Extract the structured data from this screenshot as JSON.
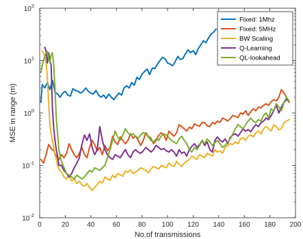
{
  "chart_data": {
    "type": "line",
    "xlabel": "No.of transmissions",
    "ylabel": "MSE in range (m)",
    "xlim": [
      0,
      200
    ],
    "ylim": [
      0.01,
      100
    ],
    "yscale": "log",
    "grid": false,
    "legend_position": "top-right",
    "x_ticks": [
      "0",
      "20",
      "40",
      "60",
      "80",
      "100",
      "120",
      "140",
      "160",
      "180",
      "200"
    ],
    "y_ticks": [
      {
        "base": "10",
        "exp": "-2"
      },
      {
        "base": "10",
        "exp": "-1"
      },
      {
        "base": "10",
        "exp": "0"
      },
      {
        "base": "10",
        "exp": "1"
      },
      {
        "base": "10",
        "exp": "2"
      }
    ],
    "series": [
      {
        "name": "Fixed: 1Mhz",
        "color": "#0072BD",
        "x": [
          1,
          2,
          4,
          6,
          8,
          10,
          12,
          14,
          16,
          18,
          20,
          22,
          24,
          26,
          28,
          30,
          32,
          34,
          36,
          38,
          40,
          42,
          44,
          46,
          48,
          50,
          52,
          54,
          56,
          58,
          60,
          62,
          64,
          66,
          68,
          70,
          72,
          74,
          76,
          78,
          80,
          82,
          84,
          86,
          88,
          90,
          92,
          94,
          96,
          98,
          100,
          102,
          104,
          106,
          108,
          110,
          112,
          114,
          116,
          118,
          120,
          122,
          124,
          126,
          128,
          130,
          132,
          134,
          136,
          138
        ],
        "y": [
          1.6,
          3.5,
          3.0,
          3.8,
          2.8,
          4.2,
          2.5,
          2.3,
          2.0,
          2.4,
          2.6,
          2.2,
          2.1,
          2.9,
          2.7,
          2.6,
          2.4,
          2.6,
          3.0,
          2.6,
          2.4,
          2.3,
          2.7,
          2.2,
          2.0,
          2.2,
          1.9,
          2.3,
          2.0,
          1.8,
          2.1,
          2.4,
          2.2,
          3.0,
          3.3,
          3.0,
          3.8,
          3.4,
          4.8,
          4.4,
          5.5,
          6.2,
          6.9,
          5.4,
          7.2,
          7.0,
          8.5,
          10.0,
          11.5,
          10.8,
          9.0,
          8.6,
          8.0,
          9.6,
          12.0,
          10.5,
          11.0,
          13.5,
          16.0,
          14.2,
          15.5,
          13.0,
          17.0,
          20.0,
          24.0,
          22.0,
          27.0,
          32.0,
          35.0,
          40.0
        ]
      },
      {
        "name": "Fixed: 5MHz",
        "color": "#D95319",
        "x": [
          1,
          3,
          5,
          7,
          9,
          11,
          13,
          15,
          17,
          19,
          21,
          23,
          25,
          27,
          29,
          31,
          33,
          35,
          37,
          39,
          41,
          43,
          45,
          47,
          49,
          51,
          53,
          55,
          57,
          59,
          61,
          63,
          65,
          67,
          69,
          71,
          73,
          75,
          77,
          79,
          81,
          83,
          85,
          87,
          89,
          91,
          93,
          95,
          97,
          99,
          101,
          103,
          105,
          107,
          109,
          111,
          113,
          115,
          117,
          119,
          121,
          123,
          125,
          127,
          129,
          131,
          133,
          135,
          137,
          139,
          141,
          143,
          145,
          147,
          149,
          151,
          153,
          155,
          157,
          159,
          161,
          163,
          165,
          167,
          169,
          171,
          173,
          175,
          177,
          179,
          181,
          183,
          185,
          187,
          189,
          191,
          193,
          195
        ],
        "y": [
          0.13,
          0.11,
          0.16,
          0.25,
          0.21,
          0.19,
          0.15,
          0.13,
          0.16,
          0.14,
          0.17,
          0.26,
          0.2,
          0.16,
          0.14,
          0.17,
          0.22,
          0.16,
          0.14,
          0.22,
          0.3,
          0.25,
          0.19,
          0.22,
          0.16,
          0.24,
          0.19,
          0.22,
          0.36,
          0.28,
          0.25,
          0.35,
          0.3,
          0.26,
          0.3,
          0.4,
          0.33,
          0.36,
          0.3,
          0.24,
          0.3,
          0.42,
          0.36,
          0.33,
          0.26,
          0.3,
          0.37,
          0.42,
          0.38,
          0.3,
          0.45,
          0.4,
          0.36,
          0.42,
          0.6,
          0.55,
          0.5,
          0.45,
          0.54,
          0.5,
          0.62,
          0.58,
          0.56,
          0.66,
          0.65,
          0.57,
          0.55,
          0.66,
          0.62,
          0.7,
          0.66,
          0.8,
          0.76,
          0.7,
          0.78,
          0.9,
          0.86,
          0.82,
          1.0,
          0.95,
          1.1,
          0.9,
          1.05,
          1.2,
          1.1,
          1.3,
          1.25,
          1.4,
          1.5,
          1.4,
          1.65,
          1.8,
          1.7,
          2.0,
          2.8,
          2.4,
          2.0,
          1.6
        ]
      },
      {
        "name": "BW Scaling",
        "color": "#EDB120",
        "x": [
          2,
          3,
          4,
          5,
          6,
          7,
          8,
          9,
          10,
          11,
          12,
          13,
          14,
          15,
          17,
          19,
          21,
          23,
          25,
          27,
          29,
          31,
          33,
          35,
          37,
          39,
          41,
          43,
          45,
          47,
          49,
          51,
          53,
          55,
          57,
          59,
          61,
          63,
          65,
          67,
          69,
          71,
          73,
          75,
          77,
          79,
          81,
          83,
          85,
          87,
          89,
          91,
          93,
          95,
          97,
          99,
          101,
          103,
          105,
          107,
          109,
          111,
          113,
          115,
          117,
          119,
          121,
          123,
          125,
          127,
          129,
          131,
          133,
          135,
          137,
          139,
          141,
          143,
          145,
          147,
          149,
          151,
          153,
          155,
          157,
          159,
          161,
          163,
          165,
          167,
          169,
          171,
          173,
          175,
          177,
          179,
          181,
          183,
          185,
          187,
          189,
          191,
          193,
          195
        ],
        "y": [
          15.0,
          14.0,
          12.0,
          9.0,
          5.0,
          1.6,
          0.6,
          0.4,
          0.3,
          0.22,
          0.16,
          0.13,
          0.1,
          0.085,
          0.075,
          0.06,
          0.055,
          0.065,
          0.05,
          0.055,
          0.045,
          0.05,
          0.042,
          0.04,
          0.045,
          0.038,
          0.033,
          0.038,
          0.043,
          0.05,
          0.046,
          0.06,
          0.055,
          0.052,
          0.065,
          0.058,
          0.07,
          0.066,
          0.062,
          0.078,
          0.074,
          0.082,
          0.07,
          0.075,
          0.08,
          0.09,
          0.085,
          0.08,
          0.072,
          0.085,
          0.095,
          0.09,
          0.085,
          0.1,
          0.095,
          0.09,
          0.11,
          0.1,
          0.095,
          0.12,
          0.105,
          0.095,
          0.11,
          0.12,
          0.13,
          0.15,
          0.14,
          0.13,
          0.16,
          0.15,
          0.14,
          0.17,
          0.16,
          0.15,
          0.2,
          0.18,
          0.19,
          0.17,
          0.22,
          0.24,
          0.26,
          0.25,
          0.28,
          0.26,
          0.32,
          0.34,
          0.3,
          0.36,
          0.38,
          0.35,
          0.42,
          0.45,
          0.4,
          0.5,
          0.55,
          0.5,
          0.45,
          0.6,
          0.55,
          0.48,
          0.5,
          0.65,
          0.7,
          0.75
        ]
      },
      {
        "name": "Q-Learning",
        "color": "#7E2F8E",
        "x": [
          4,
          5,
          6,
          7,
          8,
          9,
          10,
          11,
          12,
          13,
          14,
          15,
          17,
          19,
          21,
          23,
          25,
          27,
          29,
          31,
          33,
          35,
          37,
          39,
          41,
          43,
          45,
          47,
          49,
          51,
          53,
          55,
          57,
          59,
          61,
          63,
          65,
          67,
          69,
          71,
          73,
          75,
          77,
          79,
          81,
          83,
          85,
          87,
          89,
          91,
          93,
          95,
          97,
          99,
          101,
          103,
          105,
          107,
          109,
          111,
          113,
          115,
          117,
          119,
          121,
          123,
          125,
          127,
          129,
          131,
          133,
          135,
          137,
          139,
          141,
          143,
          145,
          147,
          149,
          151,
          153,
          155,
          157,
          159,
          161,
          163,
          165,
          167,
          169,
          171,
          173,
          175,
          177,
          179,
          181,
          183,
          185,
          187,
          189,
          191,
          193,
          195
        ],
        "y": [
          18.0,
          15.0,
          9.0,
          14.0,
          10.0,
          8.0,
          1.2,
          0.5,
          0.3,
          0.2,
          0.15,
          0.1,
          0.1,
          0.08,
          0.07,
          0.06,
          0.07,
          0.09,
          0.11,
          0.14,
          0.25,
          0.38,
          0.3,
          0.4,
          0.22,
          0.16,
          0.2,
          0.55,
          0.3,
          0.2,
          0.16,
          0.14,
          0.13,
          0.16,
          0.15,
          0.14,
          0.17,
          0.2,
          0.16,
          0.14,
          0.18,
          0.2,
          0.18,
          0.17,
          0.19,
          0.22,
          0.2,
          0.18,
          0.2,
          0.24,
          0.22,
          0.2,
          0.21,
          0.19,
          0.18,
          0.2,
          0.18,
          0.15,
          0.2,
          0.17,
          0.18,
          0.15,
          0.2,
          0.23,
          0.26,
          0.22,
          0.25,
          0.3,
          0.24,
          0.28,
          0.2,
          0.18,
          0.3,
          0.35,
          0.3,
          0.28,
          0.32,
          0.26,
          0.34,
          0.38,
          0.4,
          0.36,
          0.42,
          0.5,
          0.45,
          0.48,
          0.44,
          0.52,
          0.6,
          0.55,
          0.65,
          0.7,
          0.8,
          0.75,
          0.9,
          1.1,
          1.4,
          1.0,
          1.3,
          1.6,
          1.8,
          1.7
        ]
      },
      {
        "name": "QL-lookahead",
        "color": "#77AC30",
        "x": [
          1,
          2,
          3,
          4,
          5,
          6,
          7,
          8,
          9,
          10,
          11,
          12,
          13,
          14,
          15,
          17,
          19,
          21,
          23,
          25,
          27,
          29,
          31,
          33,
          35,
          37,
          39,
          41,
          43,
          45,
          47,
          49,
          51,
          53,
          55,
          57,
          59,
          61,
          63,
          65,
          67,
          69,
          71,
          73,
          75,
          77,
          79,
          81,
          83,
          85,
          87,
          89,
          91,
          93,
          95,
          97,
          99,
          101,
          103,
          105,
          107,
          109,
          111,
          113,
          115,
          117,
          119,
          121,
          123,
          125,
          127,
          129,
          131,
          133,
          135,
          137,
          139,
          141,
          143,
          145,
          147,
          149,
          151,
          153,
          155,
          157,
          159,
          161,
          163,
          165,
          167,
          169,
          171,
          173,
          175,
          177,
          179,
          181,
          183,
          185,
          187,
          189,
          191,
          193,
          195
        ],
        "y": [
          6.0,
          8.0,
          10.0,
          12.0,
          14.0,
          15.0,
          11.0,
          9.0,
          13.0,
          14.0,
          8.0,
          3.0,
          0.8,
          0.4,
          0.2,
          0.12,
          0.09,
          0.07,
          0.065,
          0.06,
          0.055,
          0.065,
          0.06,
          0.055,
          0.06,
          0.07,
          0.08,
          0.075,
          0.09,
          0.085,
          0.08,
          0.09,
          0.1,
          0.14,
          0.2,
          0.3,
          0.45,
          0.35,
          0.3,
          0.38,
          0.5,
          0.42,
          0.38,
          0.4,
          0.36,
          0.33,
          0.38,
          0.42,
          0.4,
          0.35,
          0.3,
          0.28,
          0.32,
          0.3,
          0.36,
          0.4,
          0.38,
          0.34,
          0.3,
          0.28,
          0.26,
          0.32,
          0.36,
          0.3,
          0.26,
          0.2,
          0.18,
          0.22,
          0.2,
          0.24,
          0.3,
          0.26,
          0.32,
          0.28,
          0.24,
          0.27,
          0.3,
          0.26,
          0.22,
          0.24,
          0.28,
          0.32,
          0.4,
          0.5,
          0.6,
          0.55,
          0.5,
          0.6,
          0.7,
          0.8,
          0.7,
          0.65,
          0.75,
          0.7,
          0.9,
          1.0,
          0.8,
          1.2,
          1.1,
          1.5,
          1.3,
          1.1,
          1.6,
          2.0,
          1.7
        ]
      }
    ]
  }
}
